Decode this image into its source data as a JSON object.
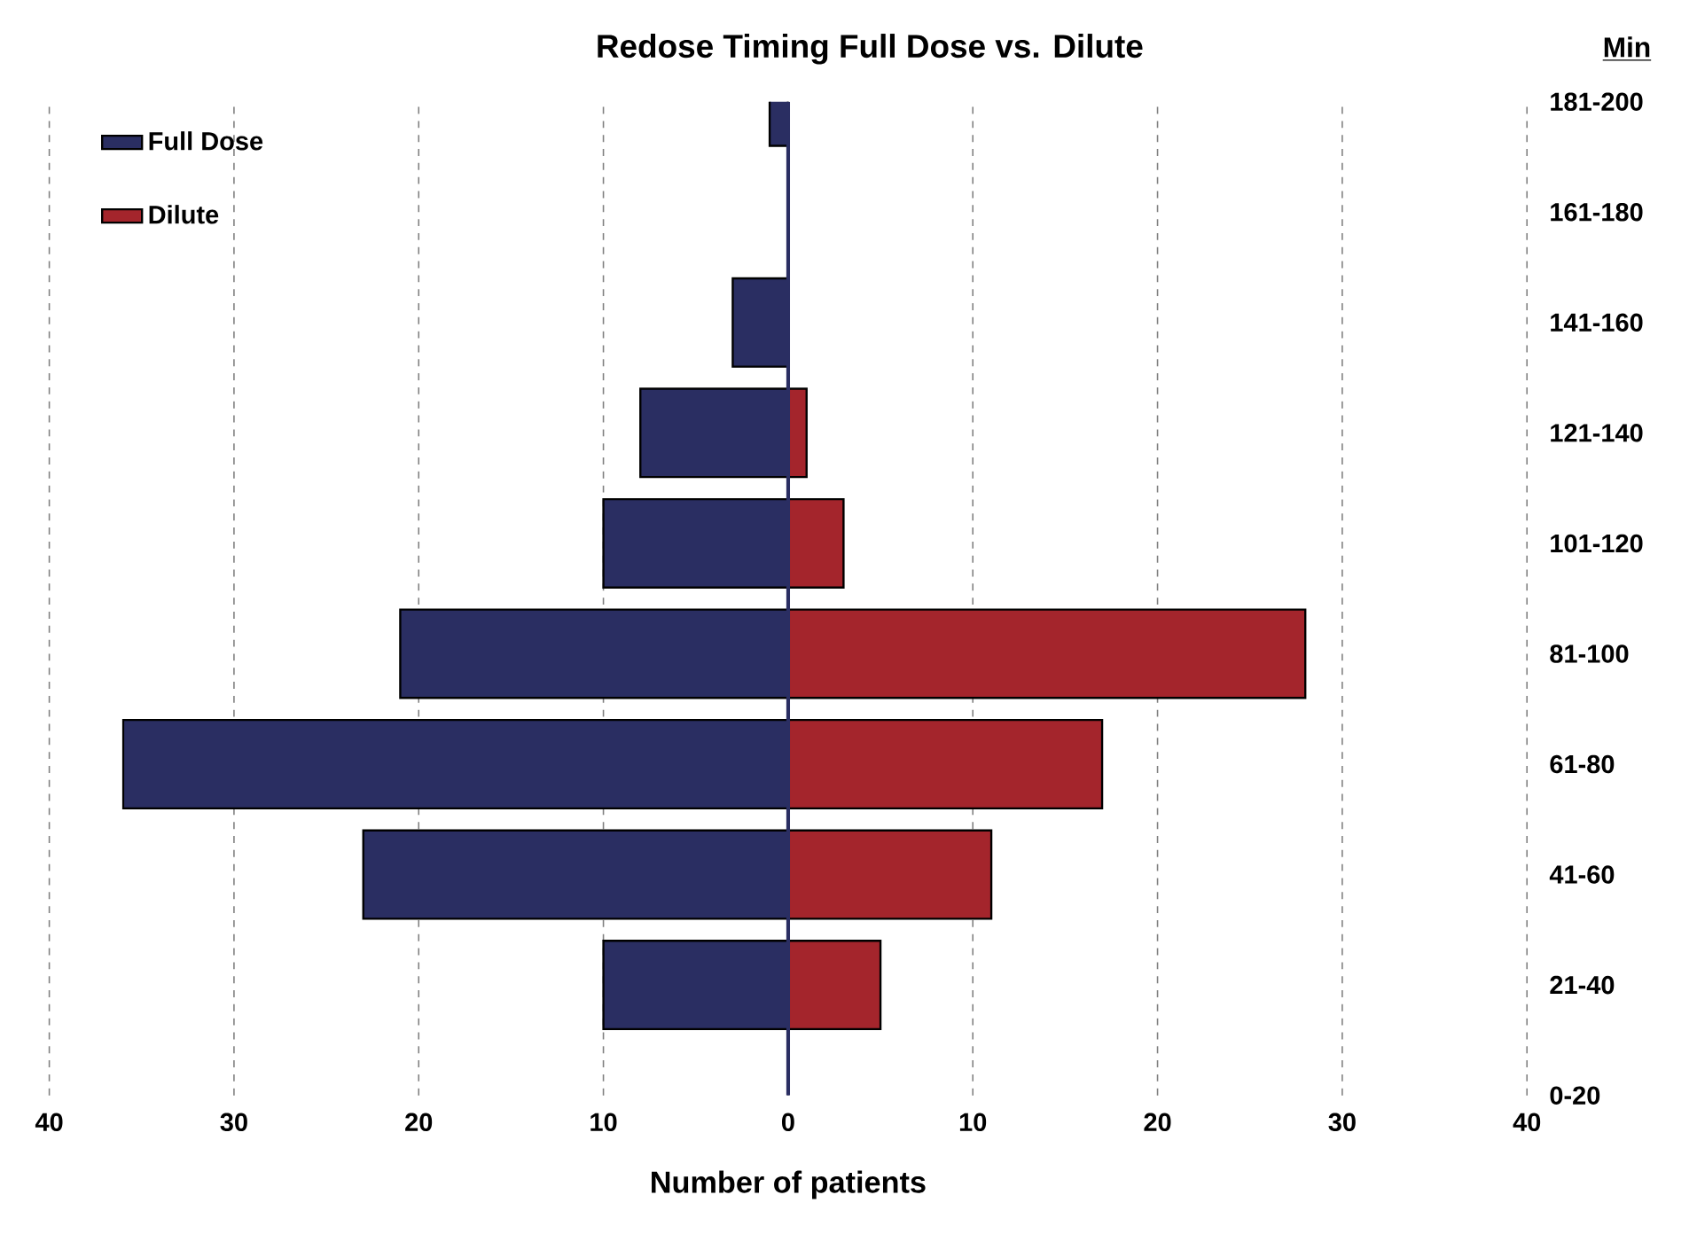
{
  "chart_data": {
    "type": "bar",
    "orientation": "horizontal",
    "title": "Redose Timing Full Dose vs. Dilute",
    "xlabel": "Number of patients",
    "ylabel": "Min",
    "categories": [
      "181-200",
      "161-180",
      "141-160",
      "121-140",
      "101-120",
      "81-100",
      "61-80",
      "41-60",
      "21-40",
      "0-20"
    ],
    "series": [
      {
        "name": "Full Dose",
        "color": "#2a2e62",
        "values": [
          -1,
          0,
          -3,
          -8,
          -10,
          -21,
          -36,
          -23,
          -10,
          0
        ]
      },
      {
        "name": "Dilute",
        "color": "#a4252c",
        "values": [
          0,
          0,
          0,
          1,
          3,
          28,
          17,
          11,
          5,
          0
        ]
      }
    ],
    "xlim": [
      -40,
      40
    ],
    "xticks": [
      {
        "value": -40,
        "label": "40"
      },
      {
        "value": -30,
        "label": "30"
      },
      {
        "value": -20,
        "label": "20"
      },
      {
        "value": -10,
        "label": "10"
      },
      0,
      10,
      20,
      30,
      40
    ],
    "ref_lines": [
      {
        "axis": "x",
        "value": 0,
        "color": "#2a2e62"
      }
    ],
    "stacked": true,
    "grid": "x",
    "legend": "top left"
  }
}
